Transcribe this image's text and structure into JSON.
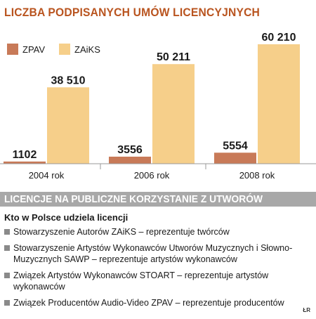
{
  "title": "LICZBA PODPISANYCH UMÓW LICENCYJNYCH",
  "colors": {
    "zpav": "#c87a58",
    "zaiks": "#f6cf8a",
    "title": "#b9541f",
    "section": "#a8a8a8"
  },
  "chart_data": {
    "type": "bar",
    "title": "LICZBA PODPISANYCH UMÓW LICENCYJNYCH",
    "categories": [
      "2004 rok",
      "2006 rok",
      "2008 rok"
    ],
    "series": [
      {
        "name": "ZPAV",
        "values": [
          1102,
          3556,
          5554
        ],
        "labels": [
          "1102",
          "3556",
          "5554"
        ]
      },
      {
        "name": "ZAiKS",
        "values": [
          38510,
          50211,
          60210
        ],
        "labels": [
          "38 510",
          "50 211",
          "60 210"
        ]
      }
    ],
    "ylim": [
      0,
      60210
    ],
    "legend": "top-left",
    "grid": false
  },
  "section": {
    "header": "LICENCJE NA PUBLICZNE KORZYSTANIE Z UTWORÓW",
    "subheading": "Kto w Polsce udziela licencji",
    "items": [
      "Stowarzyszenie Autorów ZAiKS – reprezentuje twórców",
      "Stowarzyszenie Artystów Wykonawców Utworów Muzycznych i Słowno-Muzycznych SAWP – reprezentuje artystów wykonawców",
      "Związek Artystów Wykonawców STOART – reprezentuje artystów wykonawców",
      "Związek Producentów Audio-Video ZPAV – reprezentuje producentów"
    ]
  },
  "credit": "ŁR"
}
